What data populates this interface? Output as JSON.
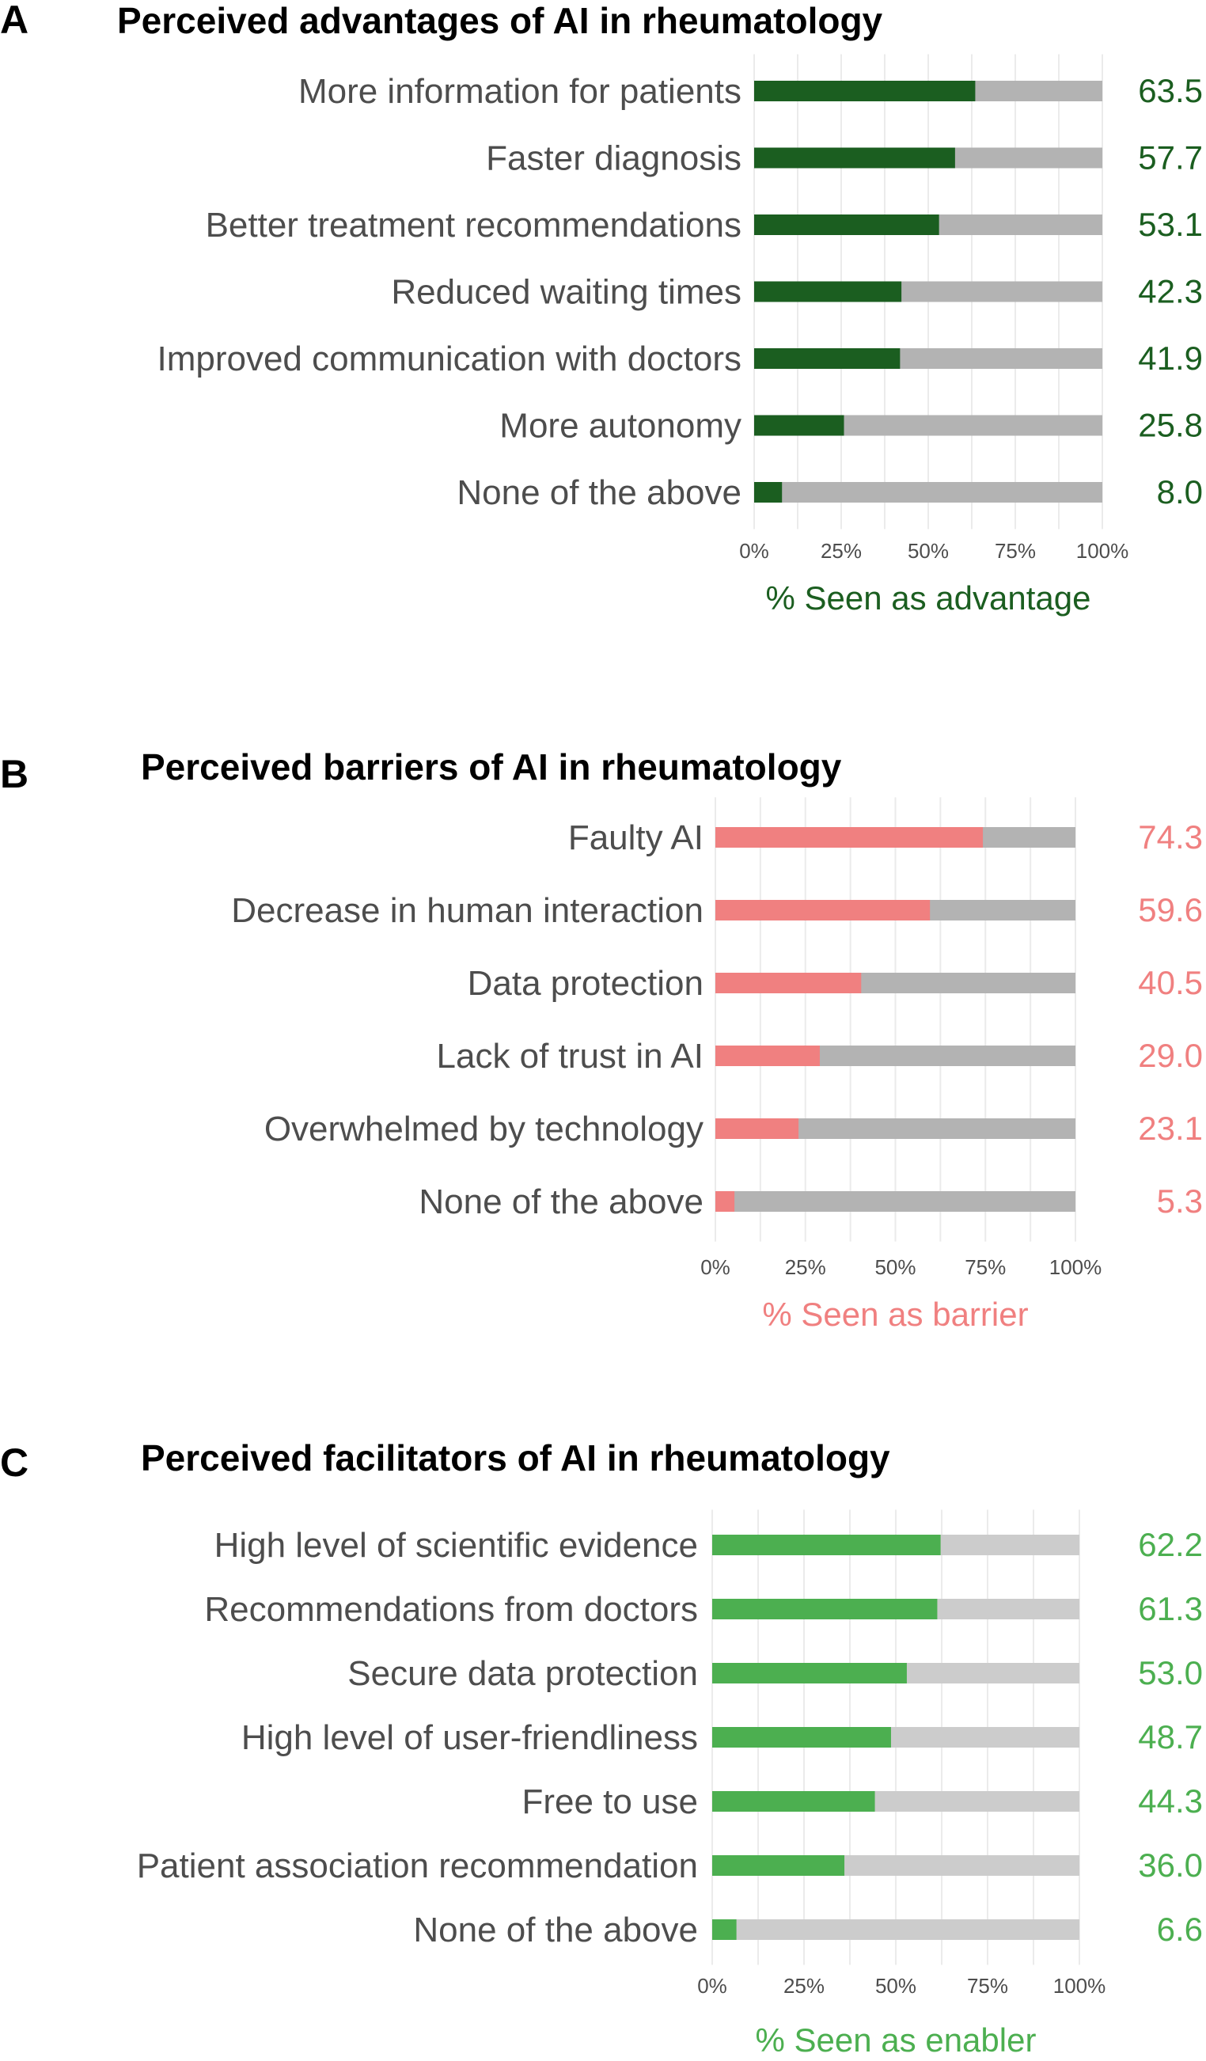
{
  "chart_data": [
    {
      "type": "bar",
      "panel": "A",
      "title": "Perceived advantages of AI in rheumatology",
      "categories": [
        "More information for patients",
        "Faster diagnosis",
        "Better treatment recommendations",
        "Reduced waiting times",
        "Improved communication with doctors",
        "More autonomy",
        "None of the above"
      ],
      "values": [
        63.5,
        57.7,
        53.1,
        42.3,
        41.9,
        25.8,
        8.0
      ],
      "value_labels": [
        "63.5",
        "57.7",
        "53.1",
        "42.3",
        "41.9",
        "25.8",
        "8.0"
      ],
      "xlabel": "% Seen as advantage",
      "ylabel": "",
      "xlim": [
        0,
        100
      ],
      "ticks": [
        "0%",
        "25%",
        "50%",
        "75%",
        "100%"
      ],
      "grid": true,
      "colors": {
        "bar": "#1b5e20",
        "rest": "#b3b3b3",
        "label": "#1b5e20"
      }
    },
    {
      "type": "bar",
      "panel": "B",
      "title": "Perceived barriers of AI in rheumatology",
      "categories": [
        "Faulty AI",
        "Decrease in human interaction",
        "Data protection",
        "Lack of trust in AI",
        "Overwhelmed by technology",
        "None of the above"
      ],
      "values": [
        74.3,
        59.6,
        40.5,
        29.0,
        23.1,
        5.3
      ],
      "value_labels": [
        "74.3",
        "59.6",
        "40.5",
        "29.0",
        "23.1",
        "5.3"
      ],
      "xlabel": "% Seen as barrier",
      "ylabel": "",
      "xlim": [
        0,
        100
      ],
      "ticks": [
        "0%",
        "25%",
        "50%",
        "75%",
        "100%"
      ],
      "grid": true,
      "colors": {
        "bar": "#f08080",
        "rest": "#b3b3b3",
        "label": "#f08080"
      }
    },
    {
      "type": "bar",
      "panel": "C",
      "title": "Perceived facilitators of AI in rheumatology",
      "categories": [
        "High level of scientific evidence",
        "Recommendations from doctors",
        "Secure data protection",
        "High level of user-friendliness",
        "Free to use",
        "Patient association recommendation",
        "None of the above"
      ],
      "values": [
        62.2,
        61.3,
        53.0,
        48.7,
        44.3,
        36.0,
        6.6
      ],
      "value_labels": [
        "62.2",
        "61.3",
        "53.0",
        "48.7",
        "44.3",
        "36.0",
        "6.6"
      ],
      "xlabel": "% Seen as enabler",
      "ylabel": "",
      "xlim": [
        0,
        100
      ],
      "ticks": [
        "0%",
        "25%",
        "50%",
        "75%",
        "100%"
      ],
      "grid": true,
      "colors": {
        "bar": "#4caf50",
        "rest": "#cccccc",
        "label": "#4caf50"
      }
    }
  ]
}
